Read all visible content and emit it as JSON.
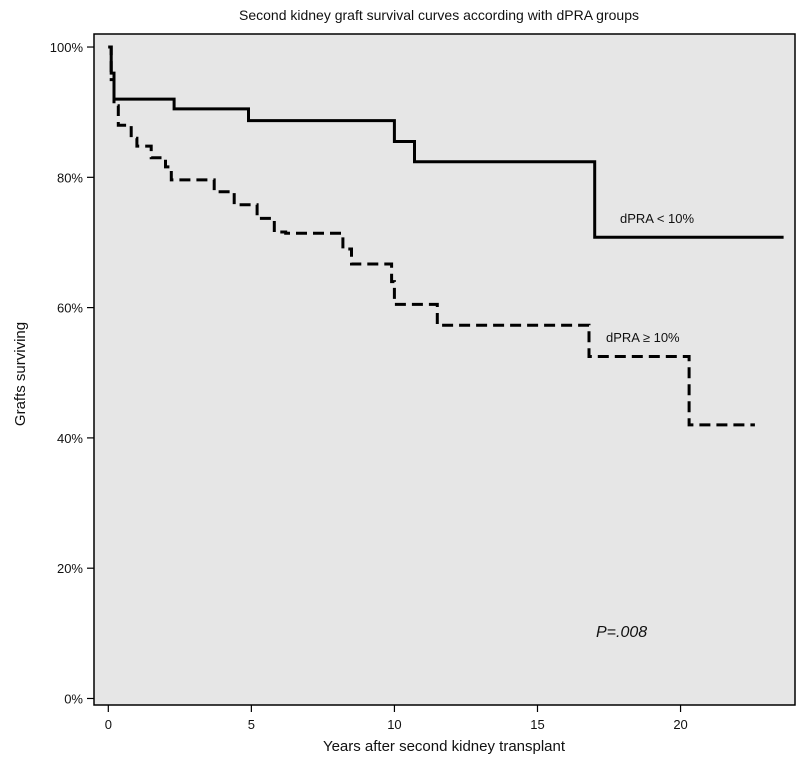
{
  "chart_data": {
    "type": "line",
    "subtype": "kaplan-meier-step",
    "title": "Second kidney graft survival curves according with dPRA groups",
    "xlabel": "Years after second kidney transplant",
    "ylabel": "Grafts surviving",
    "xlim": [
      -0.5,
      24
    ],
    "ylim": [
      -1,
      102
    ],
    "xticks": [
      0,
      5,
      10,
      15,
      20
    ],
    "xtick_labels": [
      "0",
      "5",
      "10",
      "15",
      "20"
    ],
    "yticks": [
      0,
      20,
      40,
      60,
      80,
      100
    ],
    "ytick_labels": [
      "0%",
      "20%",
      "40%",
      "60%",
      "80%",
      "100%"
    ],
    "grid": false,
    "background": "#e6e6e6",
    "annotation": "P=.008",
    "series": [
      {
        "name": "dPRA < 10%",
        "line_style": "solid",
        "color": "#000000",
        "x": [
          0,
          0.1,
          0.2,
          2.3,
          4.9,
          10.0,
          10.7,
          17.0,
          23.6
        ],
        "y": [
          100,
          96,
          92,
          90.5,
          88.7,
          85.5,
          82.4,
          70.8,
          70.8
        ]
      },
      {
        "name": "dPRA ≥ 10%",
        "line_style": "dashed",
        "color": "#000000",
        "x": [
          0,
          0.1,
          0.2,
          0.35,
          0.8,
          1.0,
          1.5,
          2.0,
          2.2,
          3.0,
          3.7,
          4.4,
          5.2,
          5.8,
          6.2,
          8.2,
          8.5,
          8.7,
          9.9,
          10.0,
          11.5,
          16.8,
          20.3,
          22.6
        ],
        "y": [
          100,
          95,
          91,
          88,
          86,
          84.8,
          83,
          81.6,
          79.6,
          79.6,
          77.8,
          75.8,
          73.7,
          71.6,
          71.4,
          69,
          66.7,
          66.7,
          64,
          60.5,
          57.3,
          52.5,
          42,
          42
        ]
      }
    ]
  }
}
